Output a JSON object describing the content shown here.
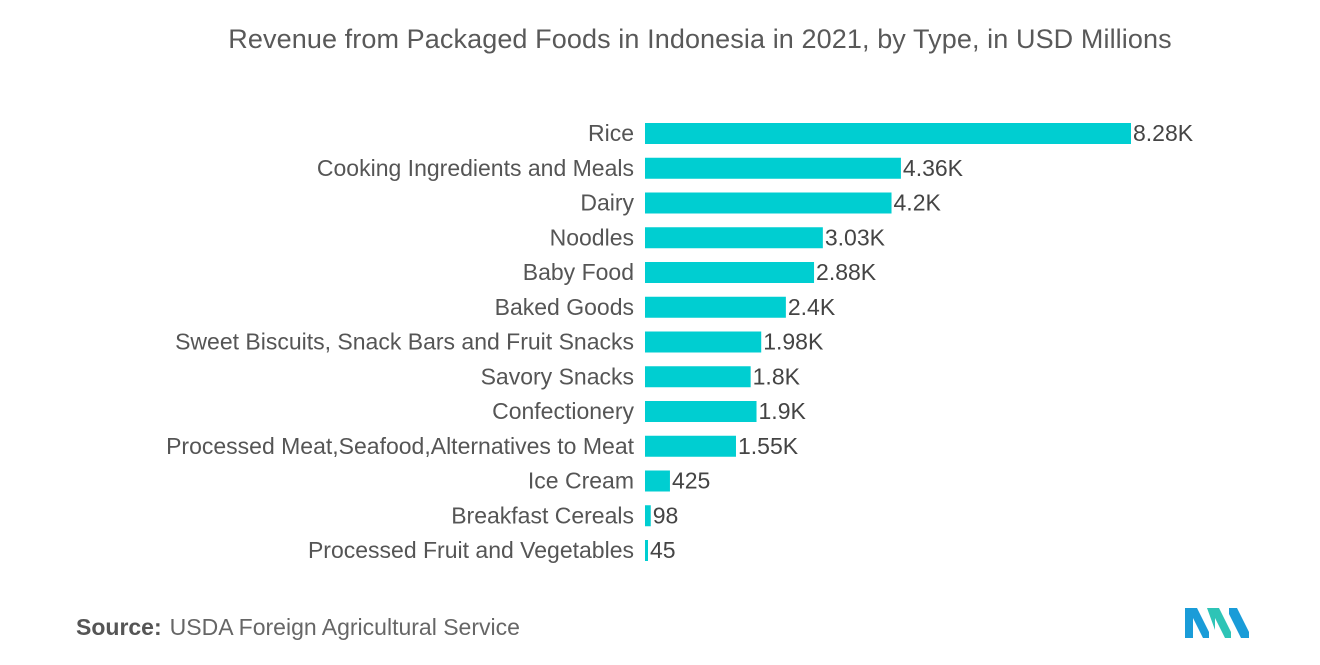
{
  "chart_data": {
    "type": "bar",
    "orientation": "horizontal",
    "title": "Revenue from Packaged Foods in Indonesia in 2021, by Type, in USD Millions",
    "categories": [
      "Rice",
      "Cooking Ingredients and Meals",
      "Dairy",
      "Noodles",
      "Baby Food",
      "Baked Goods",
      "Sweet Biscuits, Snack Bars and Fruit Snacks",
      "Savory Snacks",
      "Confectionery",
      "Processed Meat,Seafood,Alternatives to Meat",
      "Ice Cream",
      "Breakfast Cereals",
      "Processed Fruit and Vegetables"
    ],
    "values": [
      8280,
      4360,
      4200,
      3030,
      2880,
      2400,
      1980,
      1800,
      1900,
      1550,
      425,
      98,
      45
    ],
    "value_labels": [
      "8.28K",
      "4.36K",
      "4.2K",
      "3.03K",
      "2.88K",
      "2.4K",
      "1.98K",
      "1.8K",
      "1.9K",
      "1.55K",
      "425",
      "98",
      "45"
    ],
    "bar_color": "#00CED1",
    "grid": false,
    "legend": "none"
  },
  "source": {
    "label": "Source:",
    "text": "USDA Foreign Agricultural Service"
  },
  "logo": {
    "icon": "mordor-intelligence-logo-icon",
    "colors": [
      "#1A9CD8",
      "#2EC4B6"
    ]
  }
}
